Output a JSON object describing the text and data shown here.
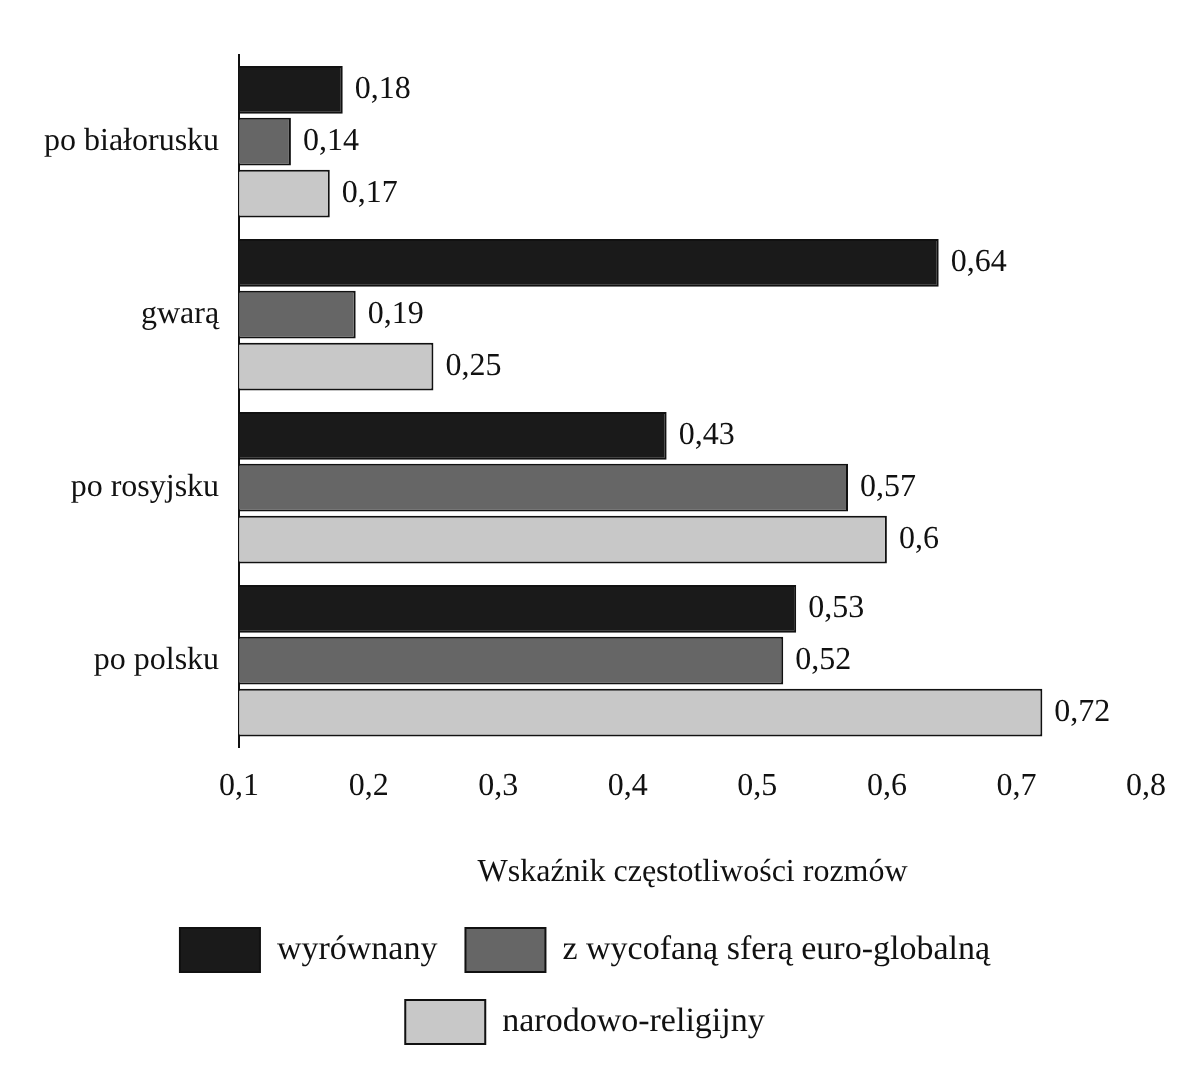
{
  "chart_data": {
    "type": "bar",
    "orientation": "horizontal",
    "xlabel": "Wskaźnik częstotliwości rozmów",
    "categories": [
      "po białorusku",
      "gwarą",
      "po rosyjsku",
      "po polsku"
    ],
    "series": [
      {
        "name": "wyrównany",
        "color": "#1a1a1a",
        "values": [
          0.18,
          0.64,
          0.43,
          0.53
        ],
        "value_labels": [
          "0,18",
          "0,64",
          "0,43",
          "0,53"
        ]
      },
      {
        "name": "z wycofaną sferą euro-globalną",
        "color": "#666666",
        "values": [
          0.14,
          0.19,
          0.57,
          0.52
        ],
        "value_labels": [
          "0,14",
          "0,19",
          "0,57",
          "0,52"
        ]
      },
      {
        "name": "narodowo-religijny",
        "color": "#c8c8c8",
        "values": [
          0.17,
          0.25,
          0.6,
          0.72
        ],
        "value_labels": [
          "0,17",
          "0,25",
          "0,6",
          "0,72"
        ]
      }
    ],
    "xlim": [
      0.1,
      0.8
    ],
    "xticks": [
      {
        "value": 0.1,
        "label": "0,1"
      },
      {
        "value": 0.2,
        "label": "0,2"
      },
      {
        "value": 0.3,
        "label": "0,3"
      },
      {
        "value": 0.4,
        "label": "0,4"
      },
      {
        "value": 0.5,
        "label": "0,5"
      },
      {
        "value": 0.6,
        "label": "0,6"
      },
      {
        "value": 0.7,
        "label": "0,7"
      },
      {
        "value": 0.8,
        "label": "0,8"
      }
    ],
    "grid": false,
    "legend": "bottom"
  }
}
